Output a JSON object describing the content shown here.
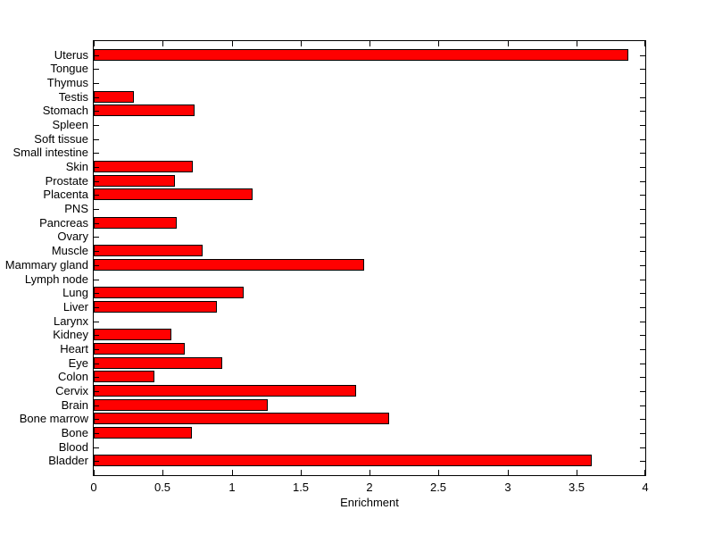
{
  "chart_data": {
    "type": "bar",
    "orientation": "horizontal",
    "title": "",
    "xlabel": "Enrichment",
    "ylabel": "",
    "xlim": [
      0,
      4
    ],
    "xtick_labels": [
      "0",
      "0.5",
      "1",
      "1.5",
      "2",
      "2.5",
      "3",
      "3.5",
      "4"
    ],
    "grid": false,
    "legend": null,
    "bar_color": "#ff0000",
    "bar_edge_color": "#000000",
    "background_color": "#ffffff",
    "categories": [
      "Uterus",
      "Tongue",
      "Thymus",
      "Testis",
      "Stomach",
      "Spleen",
      "Soft tissue",
      "Small intestine",
      "Skin",
      "Prostate",
      "Placenta",
      "PNS",
      "Pancreas",
      "Ovary",
      "Muscle",
      "Mammary gland",
      "Lymph node",
      "Lung",
      "Liver",
      "Larynx",
      "Kidney",
      "Heart",
      "Eye",
      "Colon",
      "Cervix",
      "Brain",
      "Bone marrow",
      "Bone",
      "Blood",
      "Bladder"
    ],
    "values": [
      3.88,
      0,
      0,
      0.29,
      0.73,
      0,
      0,
      0,
      0.72,
      0.59,
      1.15,
      0,
      0.6,
      0,
      0.79,
      1.96,
      0,
      1.09,
      0.89,
      0,
      0.56,
      0.66,
      0.93,
      0.44,
      1.9,
      1.26,
      2.14,
      0.71,
      0,
      3.61
    ]
  }
}
